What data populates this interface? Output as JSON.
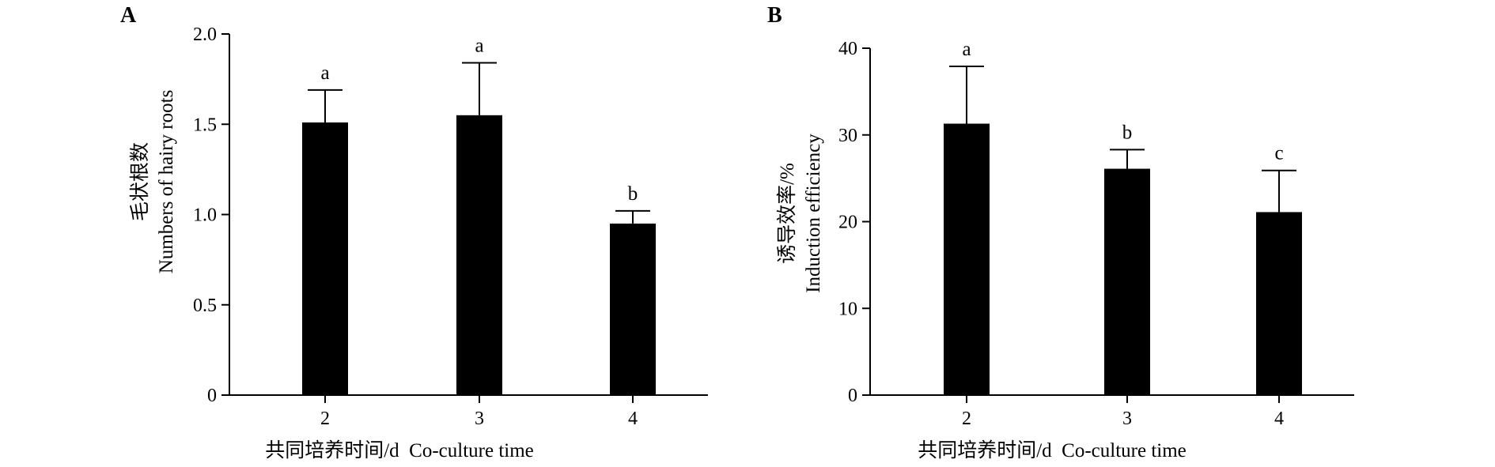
{
  "chart_data": [
    {
      "type": "bar",
      "panel_label": "A",
      "categories": [
        "2",
        "3",
        "4"
      ],
      "values": [
        1.51,
        1.55,
        0.95
      ],
      "error_upper": [
        1.69,
        1.84,
        1.02
      ],
      "significance": [
        "a",
        "a",
        "b"
      ],
      "xlabel": "共同培养时间/d  Co-culture time",
      "ylabel_cn": "毛状根数",
      "ylabel_en": "Numbers of hairy roots",
      "ylim": [
        0,
        2.0
      ],
      "yticks": [
        "0",
        "0.5",
        "1.0",
        "1.5",
        "2.0"
      ],
      "ytick_values": [
        0,
        0.5,
        1.0,
        1.5,
        2.0
      ],
      "bar_color": "#000000",
      "grid": false,
      "legend": "none"
    },
    {
      "type": "bar",
      "panel_label": "B",
      "categories": [
        "2",
        "3",
        "4"
      ],
      "values": [
        31.3,
        26.1,
        21.1
      ],
      "error_upper": [
        37.9,
        28.3,
        25.9
      ],
      "significance": [
        "a",
        "b",
        "c"
      ],
      "xlabel": "共同培养时间/d  Co-culture time",
      "ylabel_cn": "诱导效率/%",
      "ylabel_en": "Induction efficiency",
      "ylim": [
        0,
        40
      ],
      "yticks": [
        "0",
        "10",
        "20",
        "30",
        "40"
      ],
      "ytick_values": [
        0,
        10,
        20,
        30,
        40
      ],
      "bar_color": "#000000",
      "grid": false,
      "legend": "none"
    }
  ]
}
